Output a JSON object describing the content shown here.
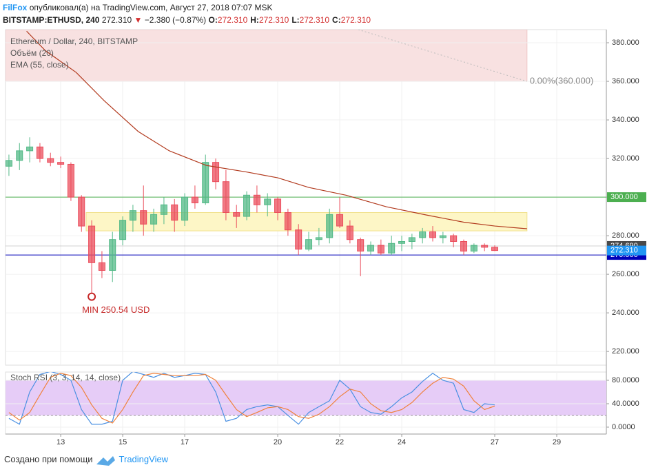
{
  "header": {
    "author": "FilFox",
    "published": "опубликовал(а) на TradingView.com, Август 27, 2018 07:07 MSK",
    "symbol": "BITSTAMP:ETHUSD, 240",
    "last": "272.310",
    "arrow": "▼",
    "change": "−2.380 (−0.87%)",
    "ohlc": [
      {
        "key": "O:",
        "value": "272.310"
      },
      {
        "key": "H:",
        "value": "272.310"
      },
      {
        "key": "L:",
        "value": "272.310"
      },
      {
        "key": "C:",
        "value": "272.310"
      }
    ]
  },
  "chart_data": [
    {
      "type": "candlestick",
      "title": "Ethereum / Dollar, 240, BITSTAMP",
      "legend_items": [
        "Объём (20)",
        "EMA (55, close)"
      ],
      "up_color": "#53b987",
      "down_color": "#eb4d5c",
      "x": [
        11.33,
        11.67,
        12,
        12.33,
        12.67,
        13,
        13.33,
        13.67,
        14,
        14.33,
        14.67,
        15,
        15.33,
        15.67,
        16,
        16.33,
        16.67,
        17,
        17.33,
        17.67,
        18,
        18.33,
        18.67,
        19,
        19.33,
        19.67,
        20,
        20.33,
        20.67,
        21,
        21.33,
        21.67,
        22,
        22.33,
        22.67,
        23,
        23.33,
        23.67,
        24,
        24.33,
        24.67,
        25,
        25.33,
        25.67,
        26,
        26.33,
        26.67,
        27
      ],
      "open": [
        316,
        319,
        324,
        326,
        320,
        318,
        317,
        300,
        285,
        266,
        262,
        278,
        288,
        293,
        286,
        291,
        296,
        288,
        300,
        297,
        318,
        308,
        292,
        290,
        301,
        296,
        299,
        292,
        283,
        273,
        278,
        279,
        291,
        285,
        278,
        272,
        275,
        271,
        276,
        277,
        279,
        282,
        279,
        280,
        277,
        272,
        275,
        274
      ],
      "high": [
        322,
        328,
        331,
        328,
        323,
        321,
        318,
        301,
        288,
        272,
        282,
        290,
        296,
        306,
        294,
        300,
        299,
        302,
        306,
        322,
        320,
        314,
        296,
        303,
        306,
        302,
        300,
        294,
        286,
        282,
        284,
        294,
        300,
        288,
        279,
        277,
        278,
        280,
        280,
        281,
        284,
        285,
        282,
        281,
        278,
        276,
        276,
        275
      ],
      "low": [
        311,
        314,
        318,
        318,
        316,
        315,
        298,
        282,
        250.54,
        258,
        256,
        275,
        282,
        280,
        282,
        286,
        282,
        285,
        294,
        296,
        304,
        288,
        284,
        288,
        292,
        290,
        288,
        280,
        270,
        272,
        275,
        276,
        284,
        276,
        259,
        270,
        270,
        270,
        272,
        273,
        276,
        277,
        276,
        274,
        270,
        271,
        272,
        272
      ],
      "close": [
        319,
        324,
        326,
        320,
        318,
        317,
        300,
        285,
        266,
        262,
        278,
        288,
        293,
        286,
        291,
        296,
        288,
        300,
        297,
        318,
        308,
        292,
        290,
        301,
        296,
        299,
        292,
        283,
        273,
        278,
        279,
        291,
        285,
        278,
        272,
        275,
        271,
        276,
        277,
        279,
        282,
        279,
        280,
        277,
        272,
        275,
        274,
        272.31
      ],
      "ema": {
        "color": "#b23a1e",
        "x": [
          11.9,
          12.5,
          13.5,
          14.4,
          15.5,
          16.5,
          17.7,
          19,
          20,
          21,
          22.2,
          23.5,
          24.8,
          26,
          27,
          28.04
        ],
        "values": [
          386,
          376,
          364.6,
          350,
          334,
          324,
          316.4,
          313,
          310,
          305,
          301,
          295,
          290.7,
          287,
          285,
          283.6
        ]
      },
      "xlim": [
        11.22,
        30.6
      ],
      "xticks": [
        13,
        15,
        17,
        20,
        22,
        24,
        27,
        29
      ],
      "ylim": [
        212.9,
        386.8
      ],
      "yticks": [
        {
          "value": 220,
          "label": "220.000"
        },
        {
          "value": 240,
          "label": "240.000"
        },
        {
          "value": 260,
          "label": "260.000"
        },
        {
          "value": 280,
          "label": "280.000"
        },
        {
          "value": 300,
          "label": "300.000"
        },
        {
          "value": 320,
          "label": "320.000"
        },
        {
          "value": 340,
          "label": "340.000"
        },
        {
          "value": 360,
          "label": "360.000"
        },
        {
          "value": 380,
          "label": "380.000"
        }
      ],
      "grid": true,
      "zones": [
        {
          "low": 360,
          "high": 386.8,
          "x_from": 11.22,
          "x_to": 28.04,
          "color": "#f8e1e1"
        },
        {
          "low": 282.5,
          "high": 292,
          "x_from": 13.82,
          "x_to": 28.04,
          "color": "#fdf6c6"
        }
      ],
      "fib": {
        "label": "0.00%(360.000)",
        "x_from": 22.6,
        "from_value": 386.8,
        "x_to": 28.04,
        "value": 360
      },
      "hlines": [
        {
          "value": 300,
          "label": "300.000",
          "color": "#4caf50"
        },
        {
          "value": 274.69,
          "label": "274.690",
          "color": "#4a4a4a"
        },
        {
          "value": 270,
          "label": "270.000",
          "color": "#0000b8"
        }
      ],
      "last_price": {
        "value": 272.31,
        "label": "272.310",
        "color": "#2196f3"
      },
      "min_marker": {
        "label": "MIN 250.54 USD",
        "x": 14.0,
        "value": 250.54,
        "color": "#c62828"
      }
    },
    {
      "type": "line",
      "title": "Stoch RSI (3, 3, 14, 14, close)",
      "x": [
        11.33,
        11.67,
        12,
        12.33,
        12.67,
        13,
        13.33,
        13.67,
        14,
        14.33,
        14.67,
        15,
        15.33,
        15.67,
        16,
        16.33,
        16.67,
        17,
        17.33,
        17.67,
        18,
        18.33,
        18.67,
        19,
        19.33,
        19.67,
        20,
        20.33,
        20.67,
        21,
        21.33,
        21.67,
        22,
        22.33,
        22.67,
        23,
        23.33,
        23.67,
        24,
        24.33,
        24.67,
        25,
        25.33,
        25.67,
        26,
        26.33,
        26.67,
        27
      ],
      "series": [
        {
          "color": "#4a90e2",
          "values": [
            15,
            5,
            60,
            90,
            95,
            90,
            80,
            30,
            5,
            5,
            10,
            80,
            95,
            90,
            85,
            92,
            85,
            88,
            92,
            90,
            60,
            10,
            15,
            30,
            35,
            38,
            35,
            20,
            5,
            25,
            35,
            45,
            80,
            65,
            35,
            25,
            22,
            35,
            50,
            60,
            78,
            92,
            80,
            75,
            30,
            25,
            40,
            38
          ]
        },
        {
          "color": "#f0823c",
          "values": [
            25,
            12,
            25,
            55,
            85,
            92,
            88,
            68,
            38,
            15,
            7,
            30,
            60,
            88,
            92,
            90,
            88,
            88,
            88,
            90,
            80,
            55,
            30,
            18,
            25,
            33,
            35,
            30,
            18,
            15,
            22,
            35,
            52,
            65,
            60,
            40,
            28,
            25,
            30,
            42,
            60,
            75,
            85,
            82,
            70,
            45,
            30,
            36
          ]
        }
      ],
      "band": {
        "low": 20,
        "high": 80,
        "color": "#e6ccf7"
      },
      "ylim": [
        -11.8,
        94.1
      ],
      "yticks": [
        {
          "value": 0,
          "label": "0.0000"
        },
        {
          "value": 40,
          "label": "40.0000"
        },
        {
          "value": 80,
          "label": "80.0000"
        }
      ],
      "grid": true
    }
  ],
  "footer": {
    "text": "Создано при помощи",
    "brand": "TradingView"
  }
}
